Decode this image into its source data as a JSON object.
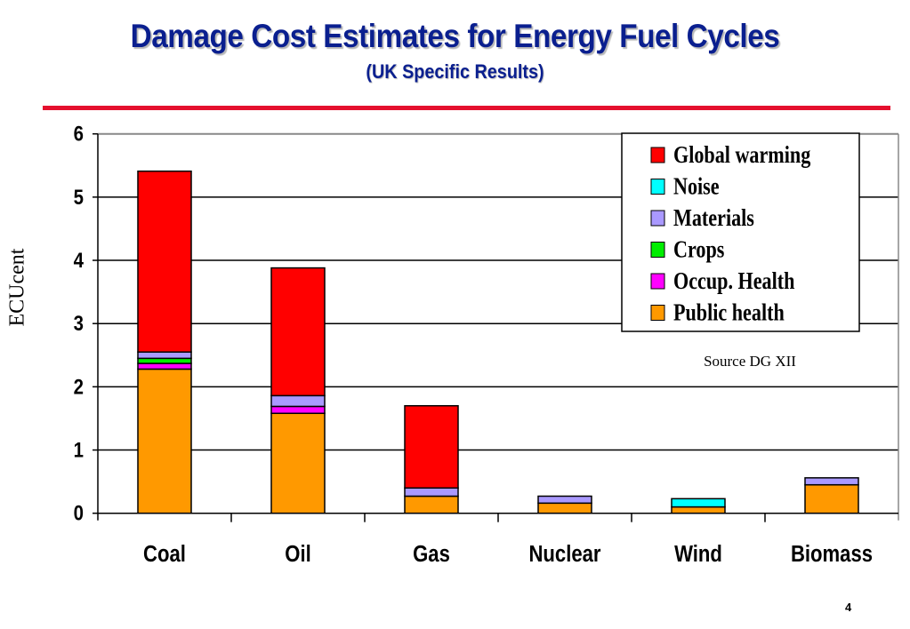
{
  "slide": {
    "title": "Damage Cost Estimates for Energy Fuel Cycles",
    "subtitle": "(UK Specific Results)",
    "page_number": "4",
    "source_note": "Source DG XII"
  },
  "chart_data": {
    "type": "bar",
    "stacked": true,
    "title": "Damage Cost Estimates for Energy Fuel Cycles",
    "subtitle": "(UK Specific Results)",
    "xlabel": "",
    "ylabel": "ECUcent",
    "ylim": [
      0,
      6
    ],
    "yticks": [
      0,
      1,
      2,
      3,
      4,
      5,
      6
    ],
    "grid": true,
    "legend_position": "top-right",
    "categories": [
      "Coal",
      "Oil",
      "Gas",
      "Nuclear",
      "Wind",
      "Biomass"
    ],
    "series": [
      {
        "name": "Public health",
        "color": "#ff9900",
        "values": [
          2.28,
          1.58,
          0.27,
          0.16,
          0.1,
          0.45
        ]
      },
      {
        "name": "Occup. Health",
        "color": "#ff00ff",
        "values": [
          0.09,
          0.11,
          0,
          0,
          0,
          0
        ]
      },
      {
        "name": "Crops",
        "color": "#00ee00",
        "values": [
          0.08,
          0,
          0,
          0,
          0,
          0
        ]
      },
      {
        "name": "Materials",
        "color": "#aa99ff",
        "values": [
          0.1,
          0.17,
          0.13,
          0.11,
          0,
          0.11
        ]
      },
      {
        "name": "Noise",
        "color": "#00ffff",
        "values": [
          0,
          0,
          0,
          0,
          0.13,
          0
        ]
      },
      {
        "name": "Global warming",
        "color": "#ff0000",
        "values": [
          2.86,
          2.02,
          1.3,
          0,
          0,
          0
        ]
      }
    ],
    "legend_order": [
      "Global warming",
      "Noise",
      "Materials",
      "Crops",
      "Occup. Health",
      "Public health"
    ],
    "annotations": [
      "Source DG XII"
    ]
  }
}
